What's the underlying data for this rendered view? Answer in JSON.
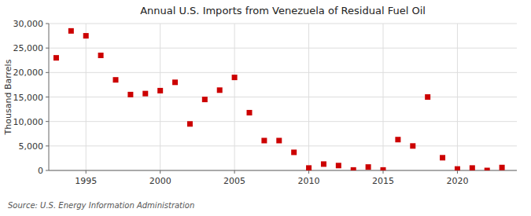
{
  "chart_data": {
    "type": "scatter",
    "title": "Annual U.S. Imports from Venezuela of Residual Fuel Oil",
    "y_label": "Thousand Barrels",
    "annotations": [
      "Source: U.S. Energy Information Administration"
    ],
    "x": [
      1993,
      1994,
      1995,
      1996,
      1997,
      1998,
      1999,
      2000,
      2001,
      2002,
      2003,
      2004,
      2005,
      2006,
      2007,
      2008,
      2009,
      2010,
      2011,
      2012,
      2013,
      2014,
      2015,
      2016,
      2017,
      2018,
      2019,
      2020,
      2021,
      2022,
      2023
    ],
    "values": [
      23000,
      28500,
      27500,
      23500,
      18500,
      15500,
      15700,
      16300,
      18000,
      9500,
      14500,
      16400,
      19000,
      11800,
      6100,
      6100,
      3700,
      500,
      1300,
      1000,
      100,
      700,
      100,
      6300,
      5000,
      15000,
      2600,
      300,
      500,
      0,
      600
    ],
    "color": "#cc0000",
    "marker": "square",
    "xlim": [
      1992.5,
      2024
    ],
    "xticks": [
      1995,
      2000,
      2005,
      2010,
      2015,
      2020
    ],
    "ylim": [
      0,
      30000
    ],
    "yticks": [
      0,
      {
        "value": 5000,
        "label": "5,000"
      },
      {
        "value": 10000,
        "label": "10,000"
      },
      {
        "value": 15000,
        "label": "15,000"
      },
      {
        "value": 20000,
        "label": "20,000"
      },
      {
        "value": 25000,
        "label": "25,000"
      },
      {
        "value": 30000,
        "label": "30,000"
      }
    ],
    "grid": true
  }
}
